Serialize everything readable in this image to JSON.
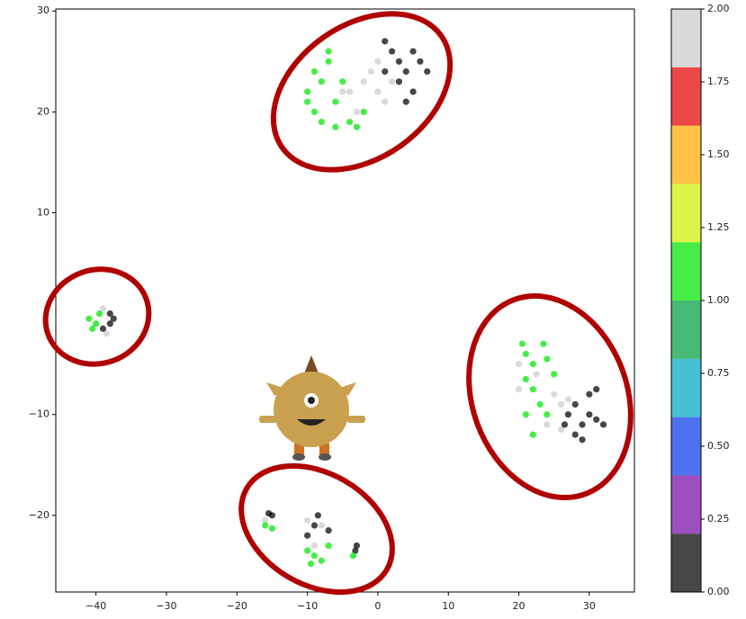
{
  "chart_data": {
    "type": "scatter",
    "xlim": [
      -45.7,
      36.4
    ],
    "ylim": [
      -27.6,
      30.2
    ],
    "xticks": [
      {
        "value": -40,
        "label": "−40"
      },
      {
        "value": -30,
        "label": "−30"
      },
      {
        "value": -20,
        "label": "−20"
      },
      {
        "value": -10,
        "label": "−10"
      },
      0,
      10,
      20,
      30
    ],
    "yticks": [
      {
        "value": -20,
        "label": "−20"
      },
      {
        "value": -10,
        "label": "−10"
      },
      10,
      20,
      30
    ],
    "x": [
      -9,
      -8,
      -10,
      -7,
      -9,
      -8,
      -6,
      -5,
      -4,
      -3,
      -7,
      -10,
      -2,
      -6,
      -4,
      -2,
      0,
      -1,
      -3,
      1,
      -5,
      0,
      2,
      1,
      2,
      3,
      4,
      5,
      6,
      3,
      5,
      1,
      4,
      7,
      -41,
      -40,
      -39.5,
      -40.5,
      -39,
      -38.5,
      -38,
      -37.5,
      -38,
      -39,
      20.5,
      21,
      22,
      23.5,
      24,
      21,
      22,
      23,
      24,
      21,
      25,
      22,
      20,
      22.5,
      25,
      26,
      27,
      24,
      26,
      20,
      27,
      28,
      29,
      30,
      31,
      32,
      30,
      31,
      28,
      29,
      26.5,
      -16,
      -10,
      -8,
      -9,
      -15.5,
      -15,
      -10,
      -8.5,
      -7,
      -3,
      -3.2,
      -9,
      -16,
      -15,
      -10,
      -9,
      -8,
      -7,
      -3.5,
      -9.5
    ],
    "y": [
      24,
      23,
      22,
      25,
      20,
      19,
      21,
      23,
      19,
      18.5,
      26,
      21,
      20,
      18.5,
      22,
      23,
      22,
      24,
      20,
      21,
      22,
      25,
      23,
      24,
      26,
      25,
      24,
      26,
      25,
      23,
      22,
      27,
      21,
      24,
      -0.5,
      -1,
      0,
      -1.5,
      0.5,
      -2,
      -1,
      -0.5,
      0,
      -1.5,
      -3,
      -4,
      -5,
      -3,
      -4.5,
      -6.5,
      -7.5,
      -9,
      -10,
      -10,
      -6,
      -12,
      -5,
      -6,
      -8,
      -9,
      -8.5,
      -11,
      -11.5,
      -7.5,
      -10,
      -9,
      -11,
      -10,
      -10.5,
      -11,
      -8,
      -7.5,
      -12,
      -12.5,
      -11,
      -20.5,
      -20.5,
      -21,
      -23,
      -19.8,
      -20,
      -22,
      -20,
      -21.5,
      -23,
      -23.5,
      -21,
      -21,
      -21.3,
      -23.5,
      -24,
      -24.5,
      -23,
      -24,
      -24.8
    ],
    "c": [
      1,
      1,
      1,
      1,
      1,
      1,
      1,
      1,
      1,
      1,
      1,
      1,
      1,
      1,
      2,
      2,
      2,
      2,
      2,
      2,
      2,
      2,
      2,
      0,
      0,
      0,
      0,
      0,
      0,
      0,
      0,
      0,
      0,
      0,
      1,
      1,
      1,
      1,
      2,
      2,
      0,
      0,
      0,
      0,
      1,
      1,
      1,
      1,
      1,
      1,
      1,
      1,
      1,
      1,
      1,
      1,
      2,
      2,
      2,
      2,
      2,
      2,
      2,
      2,
      0,
      0,
      0,
      0,
      0,
      0,
      0,
      0,
      0,
      0,
      0,
      2,
      2,
      2,
      2,
      0,
      0,
      0,
      0,
      0,
      0,
      0,
      0,
      1,
      1,
      1,
      1,
      1,
      1,
      1,
      1
    ],
    "colorbar": {
      "lim": [
        0,
        2
      ],
      "colors": [
        "#000000",
        "#7a0aa8",
        "#0a3ce6",
        "#00a8c0",
        "#00a040",
        "#00e600",
        "#d0f000",
        "#ffaa00",
        "#e60000",
        "#cccccc"
      ],
      "ticks": [
        {
          "value": 0,
          "label": "0.00"
        },
        {
          "value": 0.25,
          "label": "0.25"
        },
        {
          "value": 0.5,
          "label": "0.50"
        },
        {
          "value": 0.75,
          "label": "0.75"
        },
        {
          "value": 1,
          "label": "1.00"
        },
        {
          "value": 1.25,
          "label": "1.25"
        },
        {
          "value": 1.5,
          "label": "1.50"
        },
        {
          "value": 1.75,
          "label": "1.75"
        },
        {
          "value": 2,
          "label": "2.00"
        }
      ]
    }
  }
}
